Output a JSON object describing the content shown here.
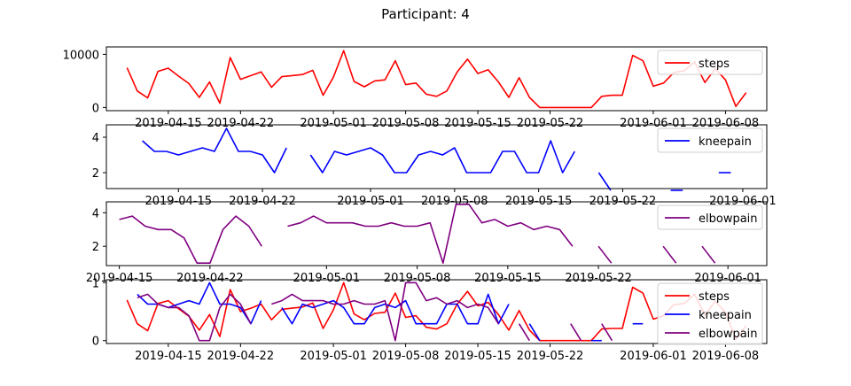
{
  "title": "Participant: 4",
  "colors": {
    "steps": "#ff0000",
    "kneepain": "#0000ff",
    "elbowpain": "#800080"
  },
  "chart_data": [
    {
      "type": "line",
      "legend": "top-right",
      "grid": false,
      "x_start": "2019-04-11",
      "xlim": [
        "2019-04-09",
        "2019-06-12"
      ],
      "ylim": [
        -600,
        11400
      ],
      "yticks": [
        0,
        10000
      ],
      "xticks": [
        "2019-04-15",
        "2019-04-22",
        "2019-05-01",
        "2019-05-08",
        "2019-05-15",
        "2019-05-22",
        "2019-06-01",
        "2019-06-08"
      ],
      "series": [
        {
          "name": "steps",
          "color": "#ff0000",
          "values": [
            7500,
            3100,
            1800,
            6800,
            7400,
            5900,
            4500,
            1900,
            4800,
            800,
            9400,
            5300,
            6000,
            6700,
            3800,
            5800,
            6000,
            6200,
            7000,
            2300,
            5700,
            10700,
            4900,
            3900,
            5000,
            5200,
            8800,
            4300,
            4600,
            2500,
            2100,
            3100,
            6700,
            9100,
            6400,
            7100,
            4800,
            1900,
            5600,
            1900,
            0,
            0,
            0,
            0,
            0,
            0,
            2100,
            2300,
            2300,
            9800,
            8800,
            4000,
            4600,
            6600,
            6900,
            8600,
            4700,
            7300,
            5200,
            200,
            2800
          ]
        }
      ]
    },
    {
      "type": "line",
      "legend": "top-right",
      "grid": false,
      "x_start": "2019-04-12",
      "xlim": [
        "2019-04-09",
        "2019-06-03"
      ],
      "ylim": [
        1.1,
        4.7
      ],
      "yticks": [
        2,
        4
      ],
      "xticks": [
        "2019-04-15",
        "2019-04-22",
        "2019-05-01",
        "2019-05-08",
        "2019-05-15",
        "2019-05-22",
        "2019-06-01"
      ],
      "series": [
        {
          "name": "kneepain",
          "color": "#0000ff",
          "values": [
            3.8,
            3.2,
            3.2,
            3.0,
            3.2,
            3.4,
            3.2,
            4.5,
            3.2,
            3.2,
            3.0,
            2.0,
            3.4,
            null,
            3.0,
            2.0,
            3.2,
            3.0,
            3.2,
            3.4,
            3.0,
            2.0,
            2.0,
            3.0,
            3.2,
            3.0,
            3.4,
            2.0,
            2.0,
            2.0,
            3.2,
            3.2,
            2.0,
            2.0,
            3.8,
            2.0,
            3.2,
            null,
            2.0,
            1.0,
            null,
            null,
            null,
            null,
            1.0,
            1.0,
            null,
            null,
            2.0,
            2.0,
            null
          ]
        }
      ]
    },
    {
      "type": "line",
      "legend": "top-right",
      "grid": false,
      "x_start": "2019-04-15",
      "xlim": [
        "2019-04-14",
        "2019-06-04"
      ],
      "ylim": [
        0.85,
        4.65
      ],
      "yticks": [
        2,
        4
      ],
      "xticks": [
        "2019-04-15",
        "2019-04-22",
        "2019-05-01",
        "2019-05-08",
        "2019-05-15",
        "2019-05-22",
        "2019-06-01"
      ],
      "series": [
        {
          "name": "elbowpain",
          "color": "#800080",
          "values": [
            3.6,
            3.8,
            3.2,
            3.0,
            3.0,
            2.5,
            1.0,
            1.0,
            3.0,
            3.8,
            3.2,
            2.0,
            null,
            3.2,
            3.4,
            3.8,
            3.4,
            3.4,
            3.4,
            3.2,
            3.2,
            3.4,
            3.2,
            3.2,
            3.4,
            1.0,
            4.5,
            4.5,
            3.4,
            3.6,
            3.2,
            3.4,
            3.0,
            3.2,
            3.0,
            2.0,
            null,
            2.0,
            1.0,
            null,
            null,
            null,
            2.0,
            1.0,
            null,
            2.0,
            1.0,
            null
          ]
        }
      ]
    },
    {
      "type": "line",
      "legend": "top-right",
      "grid": false,
      "normalized": true,
      "x_start": "2019-04-11",
      "xlim": [
        "2019-04-09",
        "2019-06-12"
      ],
      "ylim": [
        -0.05,
        1.05
      ],
      "yticks": [
        0,
        1
      ],
      "xticks": [
        "2019-04-15",
        "2019-04-22",
        "2019-05-01",
        "2019-05-08",
        "2019-05-15",
        "2019-05-22",
        "2019-06-01",
        "2019-06-08"
      ],
      "series": [
        {
          "name": "steps",
          "color": "#ff0000",
          "values": [
            0.7,
            0.29,
            0.17,
            0.64,
            0.69,
            0.55,
            0.42,
            0.18,
            0.45,
            0.07,
            0.88,
            0.5,
            0.56,
            0.63,
            0.36,
            0.54,
            0.56,
            0.58,
            0.65,
            0.21,
            0.53,
            1.0,
            0.46,
            0.36,
            0.47,
            0.49,
            0.82,
            0.4,
            0.43,
            0.23,
            0.2,
            0.29,
            0.63,
            0.85,
            0.6,
            0.66,
            0.45,
            0.18,
            0.52,
            0.18,
            0,
            0,
            0,
            0,
            0,
            0,
            0.2,
            0.21,
            0.21,
            0.92,
            0.82,
            0.37,
            0.43,
            0.62,
            0.64,
            0.8,
            0.44,
            0.68,
            0.49,
            0.02,
            0.26
          ]
        },
        {
          "name": "kneepain",
          "color": "#0000ff",
          "values": [
            null,
            0.8,
            0.63,
            0.63,
            0.57,
            0.63,
            0.69,
            0.63,
            1.0,
            0.63,
            0.63,
            0.57,
            0.29,
            0.69,
            null,
            0.57,
            0.29,
            0.63,
            0.57,
            0.63,
            0.69,
            0.57,
            0.29,
            0.29,
            0.57,
            0.63,
            0.57,
            0.69,
            0.29,
            0.29,
            0.29,
            0.63,
            0.63,
            0.29,
            0.29,
            0.8,
            0.29,
            0.63,
            null,
            0.29,
            0,
            null,
            null,
            null,
            null,
            0,
            0,
            null,
            null,
            0.29,
            0.29,
            null
          ]
        },
        {
          "name": "elbowpain",
          "color": "#800080",
          "values": [
            null,
            0.74,
            0.8,
            0.63,
            0.57,
            0.57,
            0.43,
            0,
            0,
            0.57,
            0.8,
            0.63,
            0.29,
            null,
            0.63,
            0.69,
            0.8,
            0.69,
            0.69,
            0.69,
            0.63,
            0.63,
            0.69,
            0.63,
            0.63,
            0.69,
            0,
            1.0,
            1.0,
            0.69,
            0.74,
            0.63,
            0.69,
            0.57,
            0.63,
            0.57,
            0.29,
            null,
            0.29,
            0,
            null,
            null,
            null,
            0.29,
            0,
            null,
            0.29,
            0,
            null
          ]
        }
      ]
    }
  ]
}
